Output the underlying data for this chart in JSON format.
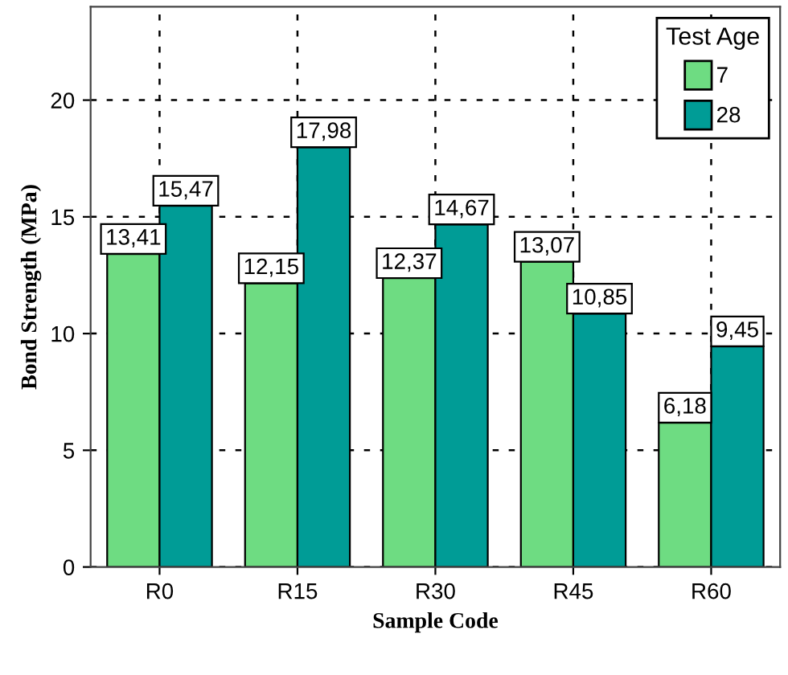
{
  "chart_data": {
    "type": "bar",
    "xlabel": "Sample Code",
    "ylabel": "Bond Strength (MPa)",
    "legend_title": "Test Age",
    "categories": [
      "R0",
      "R15",
      "R30",
      "R45",
      "R60"
    ],
    "series": [
      {
        "name": "7",
        "color": "#6edc82",
        "values": [
          13.41,
          12.15,
          12.37,
          13.07,
          6.18
        ],
        "value_labels": [
          "13,41",
          "12,15",
          "12,37",
          "13,07",
          "6,18"
        ]
      },
      {
        "name": "28",
        "color": "#009c96",
        "values": [
          15.47,
          17.98,
          14.67,
          10.85,
          9.45
        ],
        "value_labels": [
          "15,47",
          "17,98",
          "14,67",
          "10,85",
          "9,45"
        ]
      }
    ],
    "ylim": [
      0,
      24
    ],
    "yticks": [
      0,
      5,
      10,
      15,
      20
    ],
    "grid": true,
    "legend": "top right"
  }
}
